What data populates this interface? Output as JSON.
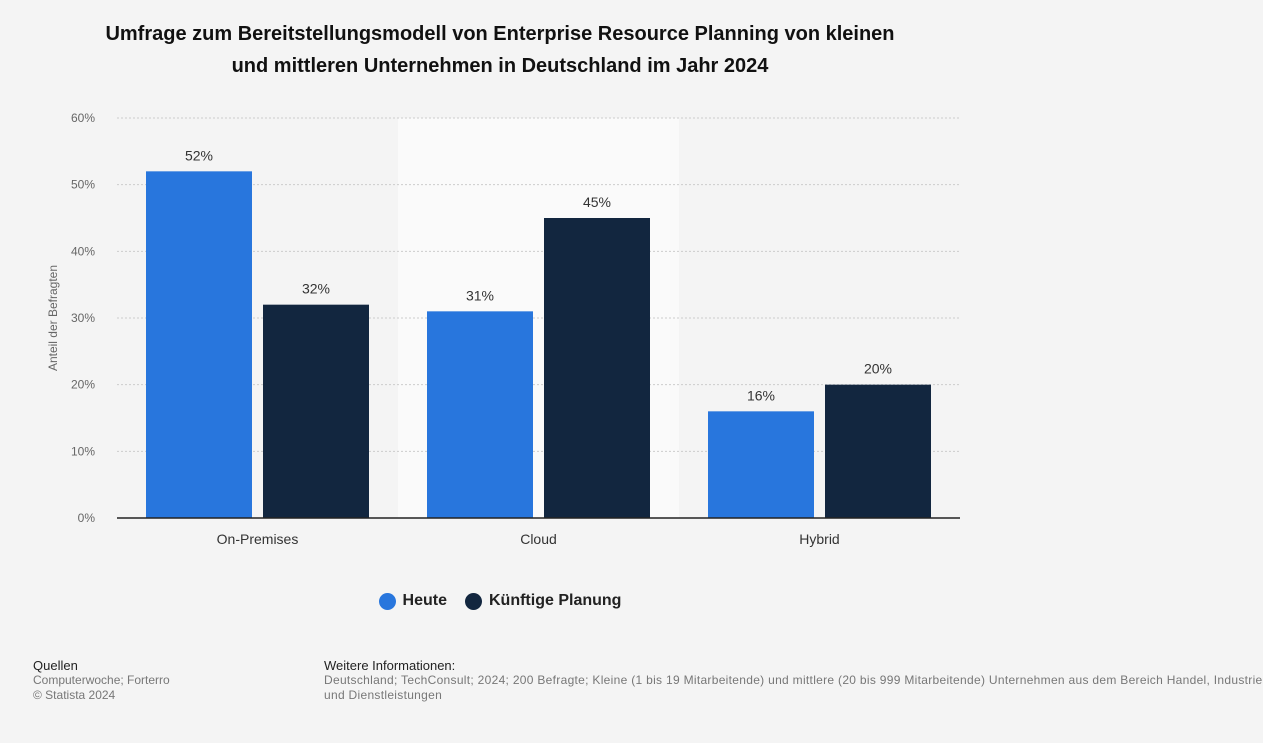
{
  "title_line1": "Umfrage zum Bereitstellungsmodell von Enterprise Resource Planning von kleinen",
  "title_line2": "und mittleren Unternehmen in Deutschland im Jahr 2024",
  "colors": {
    "heute": "#2876dd",
    "kuenftig": "#12263f",
    "grid": "#cccccc",
    "highlight": "#fafafa"
  },
  "chart_data": {
    "type": "bar",
    "categories": [
      "On-Premises",
      "Cloud",
      "Hybrid"
    ],
    "series": [
      {
        "name": "Heute",
        "values": [
          52,
          31,
          16
        ]
      },
      {
        "name": "Künftige Planung",
        "values": [
          32,
          45,
          20
        ]
      }
    ],
    "data_labels": [
      [
        "52%",
        "31%",
        "16%"
      ],
      [
        "32%",
        "45%",
        "20%"
      ]
    ],
    "ylabel": "Anteil der Befragten",
    "ylim": [
      0,
      60
    ],
    "yticks": [
      "0%",
      "10%",
      "20%",
      "30%",
      "40%",
      "50%",
      "60%"
    ],
    "grid": true,
    "legend_position": "bottom"
  },
  "footer": {
    "sources_heading": "Quellen",
    "sources": "Computerwoche; Forterro",
    "copyright": "© Statista 2024",
    "info_heading": "Weitere Informationen:",
    "info_line1": "Deutschland; TechConsult; 2024; 200 Befragte; Kleine (1 bis 19 Mitarbeitende) und mittlere (20 bis 999 Mitarbeitende) Unternehmen aus dem Bereich Handel, Industrie",
    "info_line2": "und Dienstleistungen"
  }
}
